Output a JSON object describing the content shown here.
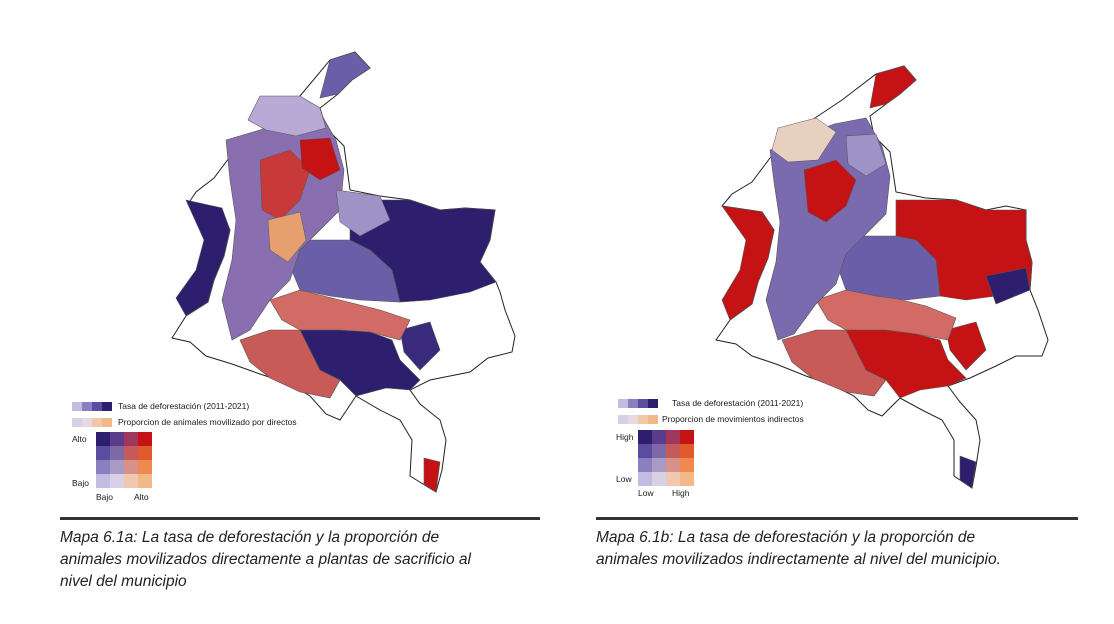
{
  "colors": {
    "dark_purple": "#2e1e6e",
    "purple": "#4c3c8e",
    "mid_purple": "#6a5ea8",
    "lavender": "#9e92c6",
    "pale": "#d8d0e4",
    "red": "#c41215",
    "salmon": "#d26a66",
    "orange": "#e6652a",
    "peach": "#f2b88a"
  },
  "map_a": {
    "legend_row1": "Tasa de deforestación (2011-2021)",
    "legend_row2": "Proporcion de animales movilizado por directos",
    "y_high": "Alto",
    "y_low": "Bajo",
    "x_low": "Bajo",
    "x_high": "Alto",
    "caption_lines": [
      "Mapa 6.1a: La tasa de deforestación y la proporción de",
      "animales movilizados directamente a plantas de sacrificio al",
      "nivel del municipio"
    ]
  },
  "map_b": {
    "legend_row1": "Tasa de deforestación (2011-2021)",
    "legend_row2": "Proporcion de movimientos indirectos",
    "y_high": "High",
    "y_low": "Low",
    "x_low": "Low",
    "x_high": "High",
    "caption_lines": [
      "Mapa 6.1b: La tasa de deforestación y la proporción de",
      "animales movilizados indirectamente al nivel del municipio."
    ]
  }
}
